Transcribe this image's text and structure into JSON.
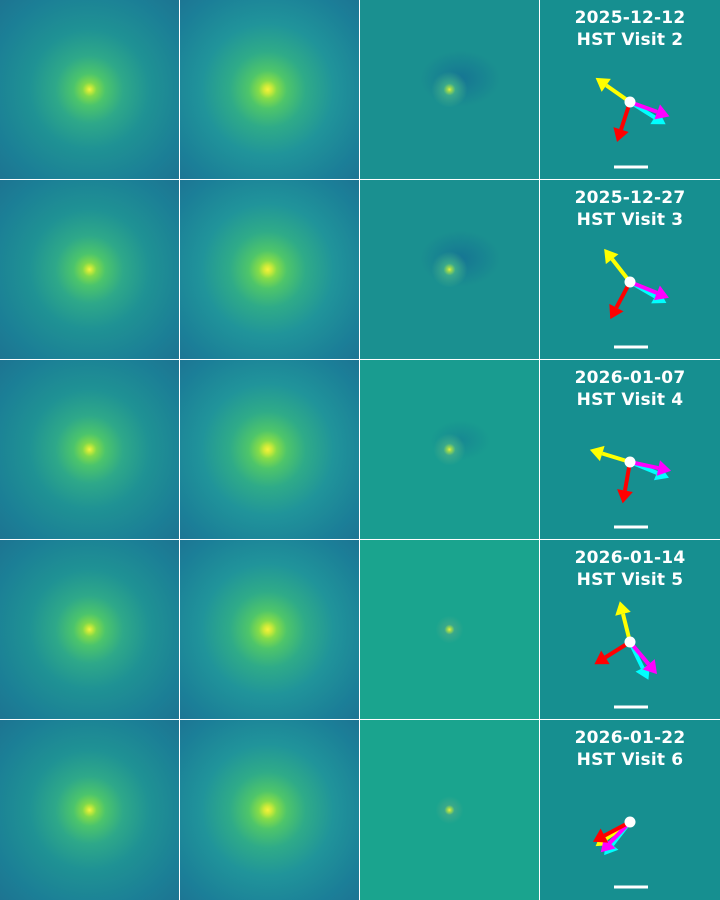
{
  "columns": [
    "observed-image",
    "model-image",
    "residual-image",
    "orientation-key"
  ],
  "rows": [
    {
      "date": "2025-12-12",
      "visit": "HST Visit 2",
      "arrows": [
        {
          "color": "#ffff00",
          "angle_deg": 215
        },
        {
          "color": "#00ffff",
          "angle_deg": 32
        },
        {
          "color": "#ff00ff",
          "angle_deg": 20
        },
        {
          "color": "#ff0000",
          "angle_deg": 108
        }
      ]
    },
    {
      "date": "2025-12-27",
      "visit": "HST Visit 3",
      "arrows": [
        {
          "color": "#ffff00",
          "angle_deg": 232
        },
        {
          "color": "#00ffff",
          "angle_deg": 30
        },
        {
          "color": "#ff00ff",
          "angle_deg": 22
        },
        {
          "color": "#ff0000",
          "angle_deg": 118
        }
      ]
    },
    {
      "date": "2026-01-07",
      "visit": "HST Visit 4",
      "arrows": [
        {
          "color": "#ffff00",
          "angle_deg": 197
        },
        {
          "color": "#00ffff",
          "angle_deg": 22
        },
        {
          "color": "#ff00ff",
          "angle_deg": 12
        },
        {
          "color": "#ff0000",
          "angle_deg": 100
        }
      ]
    },
    {
      "date": "2026-01-14",
      "visit": "HST Visit 5",
      "arrows": [
        {
          "color": "#ffff00",
          "angle_deg": 256
        },
        {
          "color": "#00ffff",
          "angle_deg": 64
        },
        {
          "color": "#ff00ff",
          "angle_deg": 50
        },
        {
          "color": "#ff0000",
          "angle_deg": 148
        }
      ]
    },
    {
      "date": "2026-01-22",
      "visit": "HST Visit 6",
      "arrows": [
        {
          "color": "#ffff00",
          "angle_deg": 145
        },
        {
          "color": "#00ffff",
          "angle_deg": 128
        },
        {
          "color": "#ff00ff",
          "angle_deg": 134
        },
        {
          "color": "#ff0000",
          "angle_deg": 152
        }
      ]
    }
  ]
}
